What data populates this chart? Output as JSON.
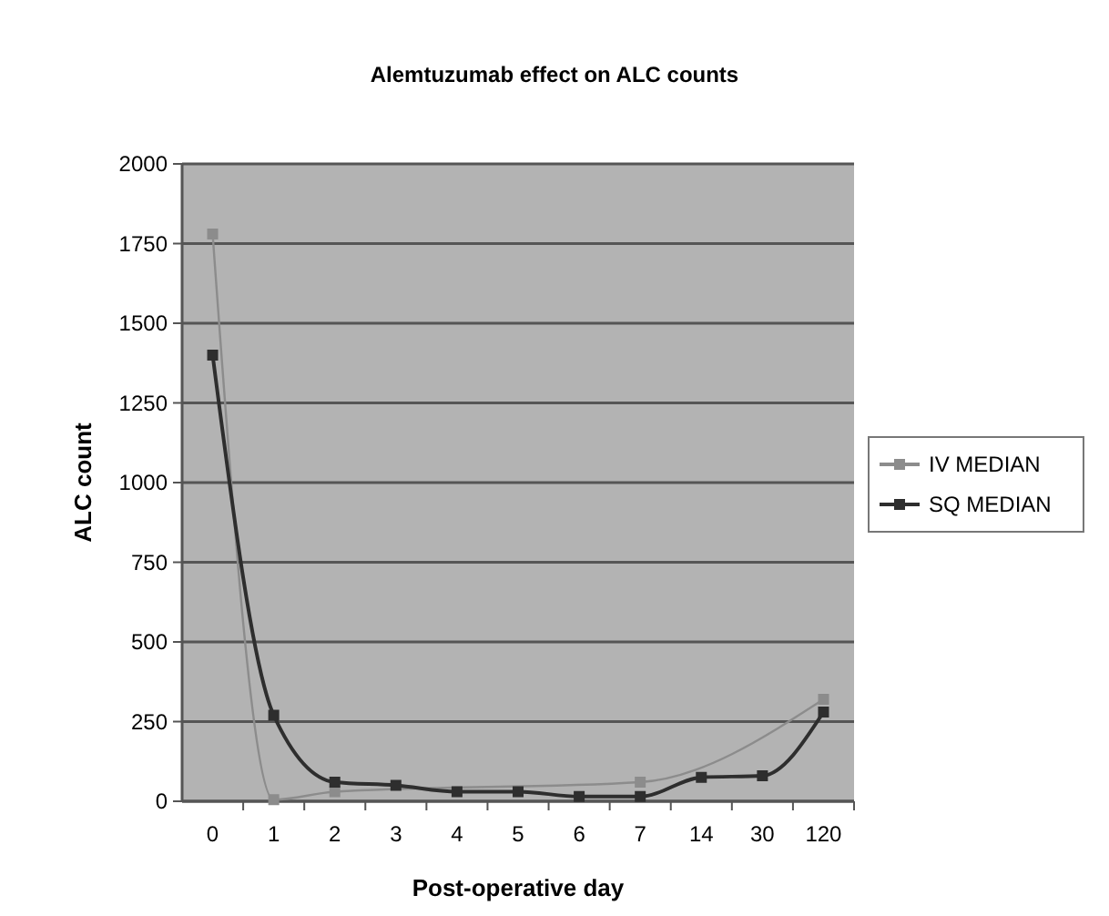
{
  "chart_data": {
    "type": "line",
    "title": "Alemtuzumab effect on ALC counts",
    "xlabel": "Post-operative day",
    "ylabel": "ALC count",
    "categories": [
      "0",
      "1",
      "2",
      "3",
      "4",
      "5",
      "6",
      "7",
      "14",
      "30",
      "120"
    ],
    "series": [
      {
        "name": "IV MEDIAN",
        "color": "#8c8c8c",
        "values": [
          1780,
          5,
          30,
          null,
          null,
          null,
          null,
          60,
          null,
          null,
          320
        ]
      },
      {
        "name": "SQ MEDIAN",
        "color": "#2e2e2e",
        "values": [
          1400,
          270,
          60,
          50,
          30,
          30,
          15,
          15,
          75,
          80,
          280
        ]
      }
    ],
    "ylim": [
      0,
      2000
    ],
    "yticks": [
      0,
      250,
      500,
      750,
      1000,
      1250,
      1500,
      1750,
      2000
    ],
    "grid": "y",
    "legend": "right",
    "marker": "square"
  }
}
